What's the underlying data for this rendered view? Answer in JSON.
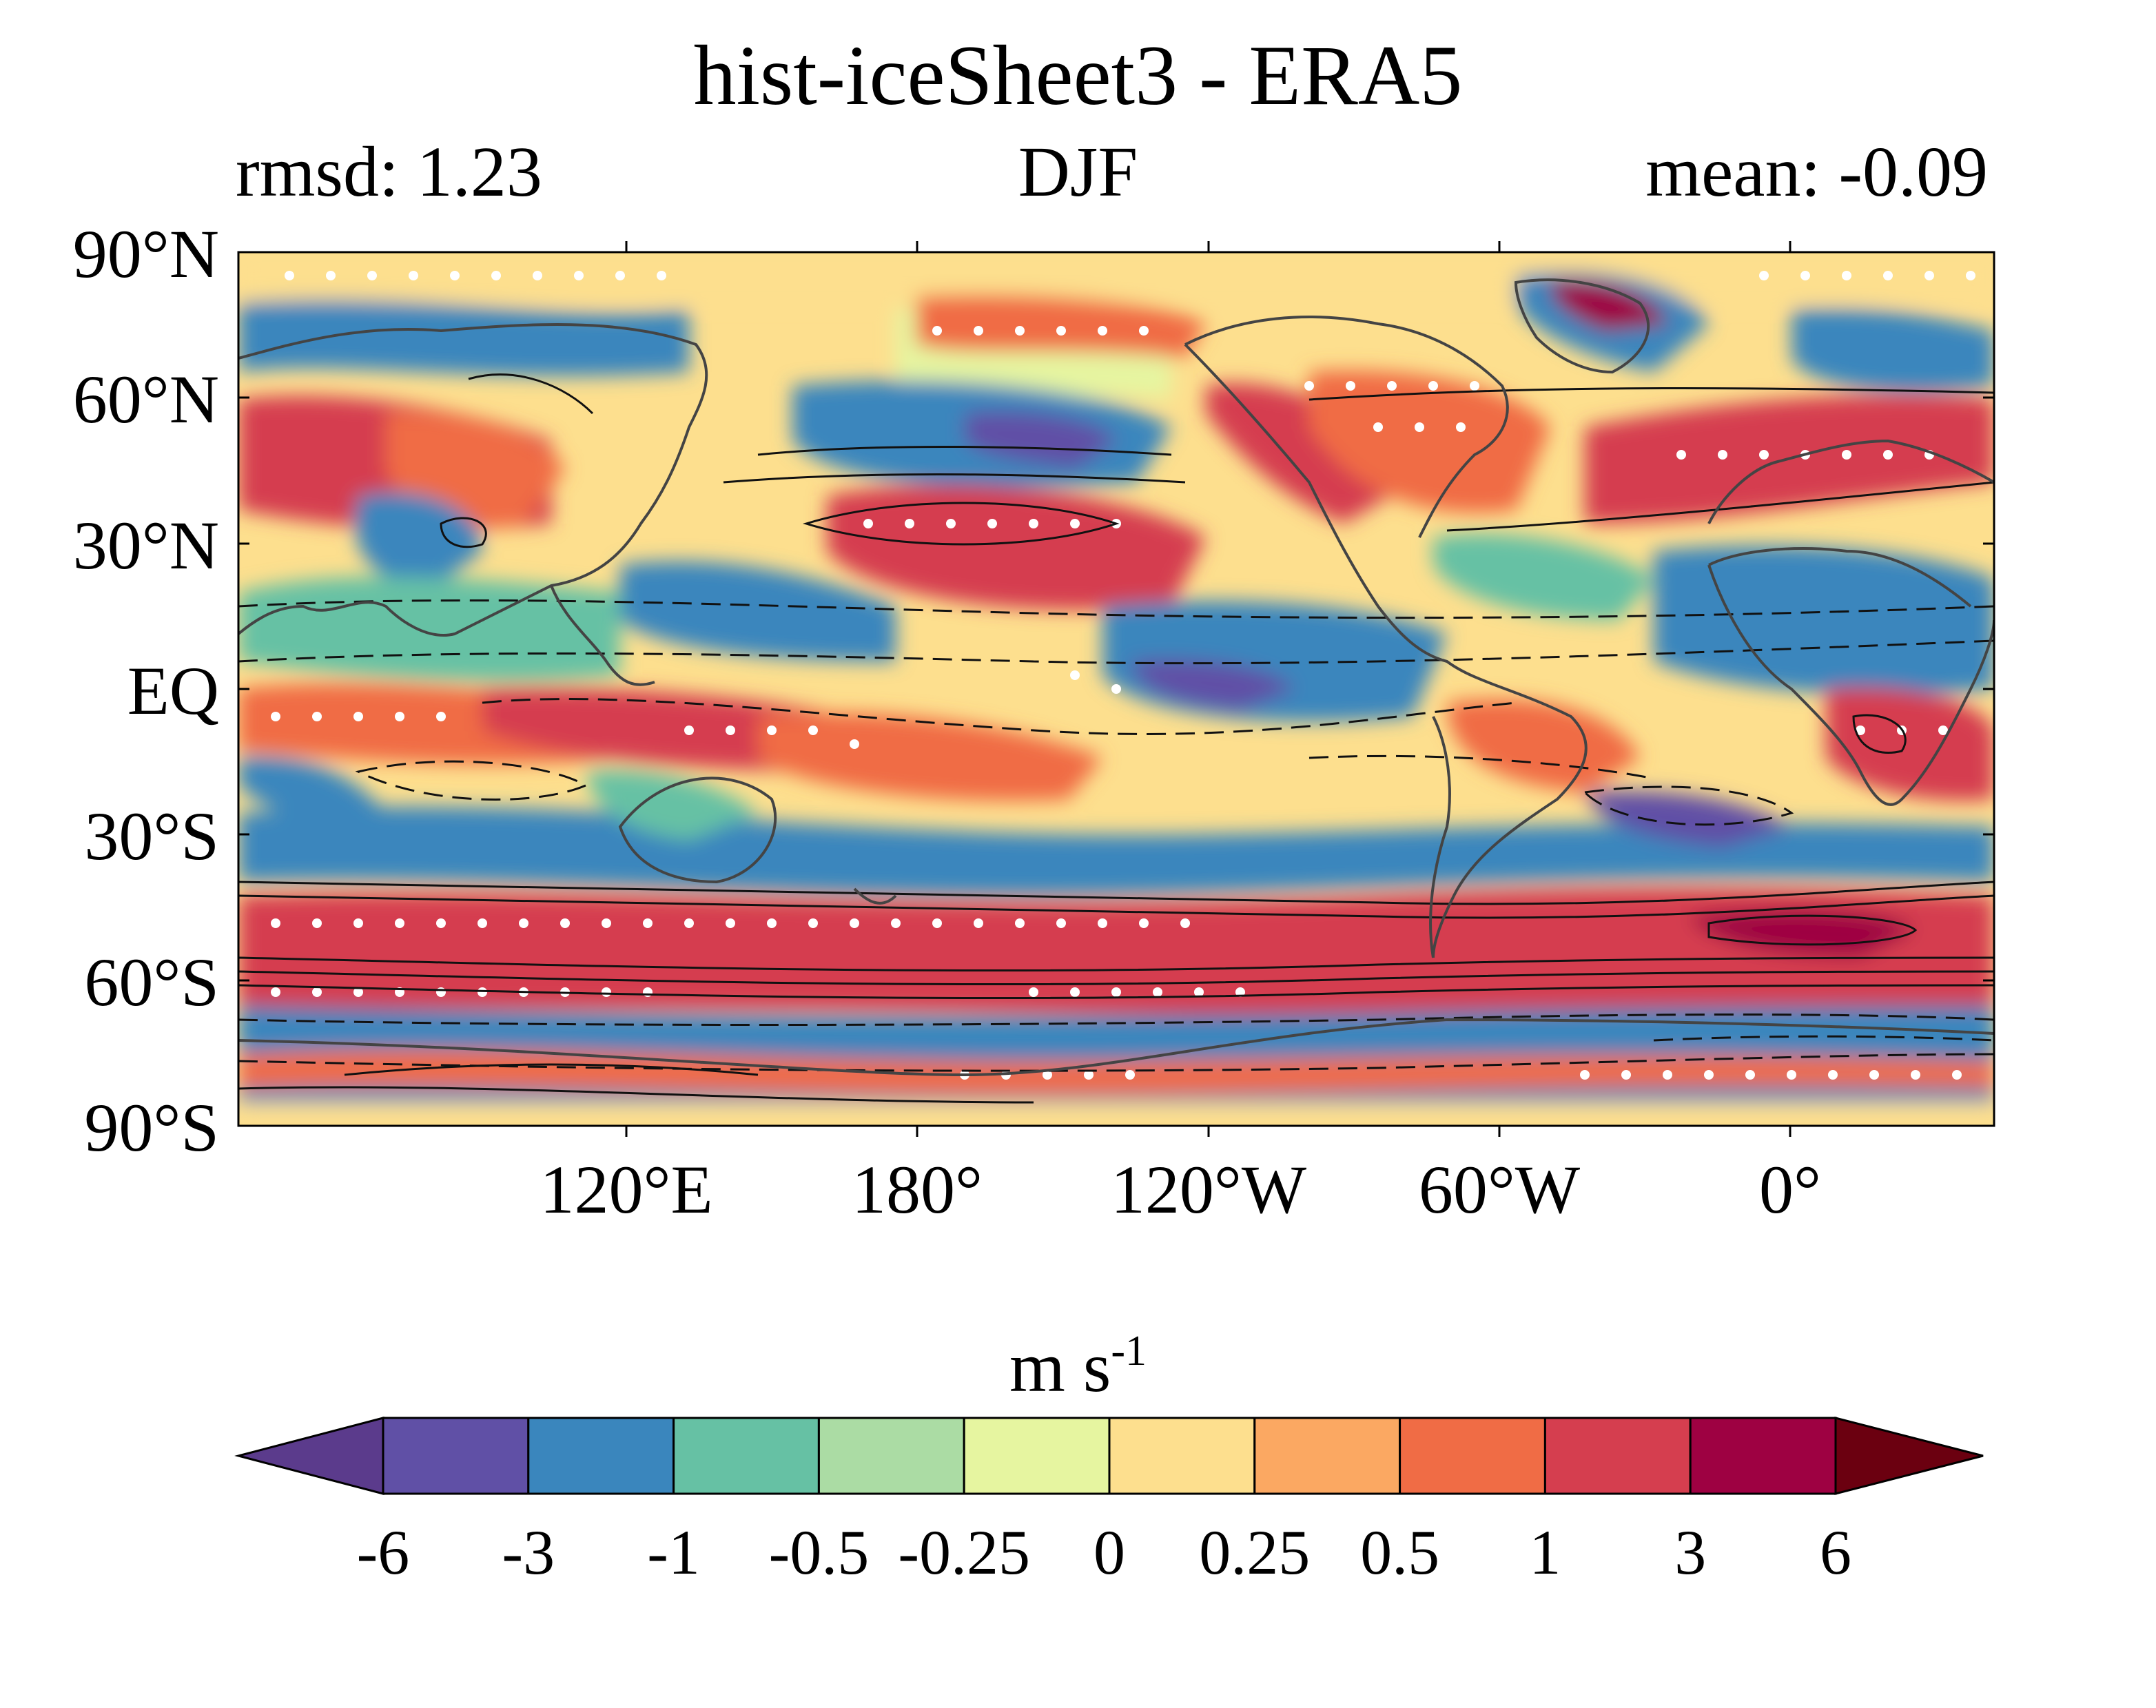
{
  "title": "hist-iceSheet3 - ERA5",
  "subtitle_left": "rmsd: 1.23",
  "subtitle_center": "DJF",
  "subtitle_right": "mean: -0.09",
  "map": {
    "lat_ticks": [
      "90°N",
      "60°N",
      "30°N",
      "EQ",
      "30°S",
      "60°S",
      "90°S"
    ],
    "lat_values": [
      90,
      60,
      30,
      0,
      -30,
      -60,
      -90
    ],
    "lon_ticks": [
      "120°E",
      "180°",
      "120°W",
      "60°W",
      "0°"
    ],
    "lon_values": [
      120,
      180,
      240,
      300,
      360
    ],
    "lon_range": [
      40,
      402
    ],
    "lat_range": [
      -90,
      90
    ],
    "stipple_color": "#ffffff",
    "coastline_color": "#444444",
    "contour_color": "#111111"
  },
  "colorbar": {
    "units_base": "m s",
    "units_exp": "-1",
    "tick_labels": [
      "-6",
      "-3",
      "-1",
      "-0.5",
      "-0.25",
      "0",
      "0.25",
      "0.5",
      "1",
      "3",
      "6"
    ],
    "colors": [
      "#5b3b8c",
      "#6050a6",
      "#3a86bd",
      "#66c1a4",
      "#abdca4",
      "#e6f5a0",
      "#fddf8e",
      "#fba862",
      "#f06c45",
      "#d53e4f",
      "#9e0142",
      "#6b0010"
    ]
  }
}
